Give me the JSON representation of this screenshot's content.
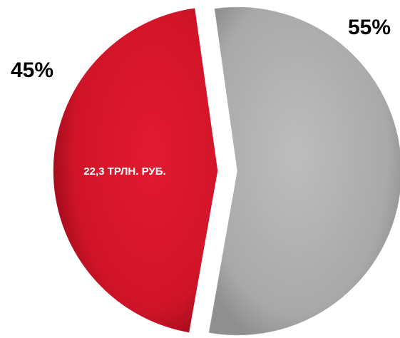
{
  "chart_data": {
    "type": "pie",
    "values": [
      55,
      45
    ],
    "value_labels": [
      "55%",
      "45%"
    ],
    "colors": [
      "#b0b0b0",
      "#d8152b"
    ],
    "annotations": [
      {
        "text": "22,3 ТРЛН. РУБ."
      }
    ]
  }
}
